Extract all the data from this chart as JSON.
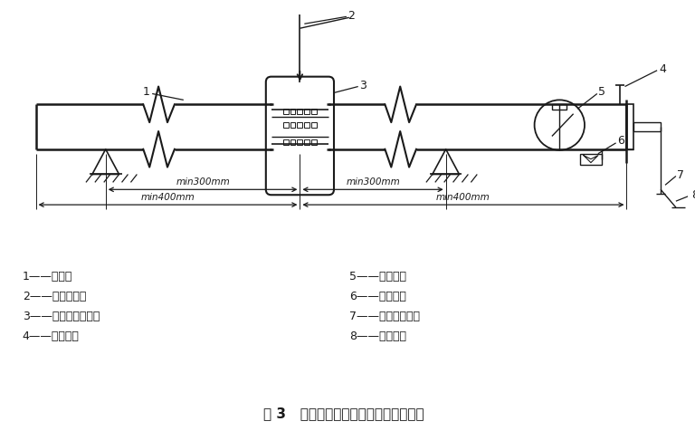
{
  "title": "图 3   沟槽式管接头承载力矩试验装置图",
  "bg_color": "#ffffff",
  "line_color": "#1a1a1a",
  "legend_items_col1": [
    "1——管段；",
    "2——试验载荷；",
    "3——沟槽式管接头；",
    "4——排气口；"
  ],
  "legend_items_col2": [
    "5——压力表；",
    "6——截止阀；",
    "7——注水充压口；",
    "8——支撑点。"
  ]
}
